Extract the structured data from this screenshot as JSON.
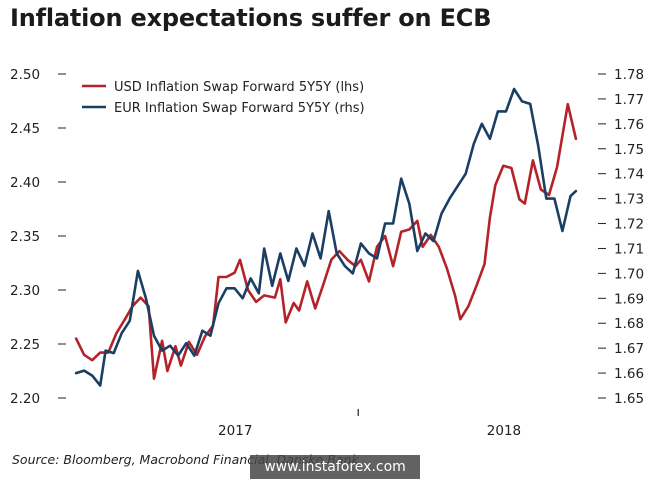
{
  "title": "Inflation expectations suffer on ECB",
  "source": "Source: Bloomberg, Macrobond Financial, Danske Bank",
  "watermark": "www.instaforex.com",
  "chart_data": {
    "type": "line",
    "title": "Inflation expectations suffer on ECB",
    "x_tick_labels": [
      "2017",
      "2018"
    ],
    "left_axis": {
      "ticks": [
        "2.20",
        "2.25",
        "2.30",
        "2.35",
        "2.40",
        "2.45",
        "2.50"
      ],
      "ylim": [
        2.2,
        2.5
      ]
    },
    "right_axis": {
      "ticks": [
        "1.65",
        "1.66",
        "1.67",
        "1.68",
        "1.69",
        "1.70",
        "1.71",
        "1.72",
        "1.73",
        "1.74",
        "1.75",
        "1.76",
        "1.77",
        "1.78"
      ],
      "ylim": [
        1.65,
        1.78
      ]
    },
    "x_range": [
      2016.4,
      2018.35
    ],
    "legend_position": "top-left",
    "series": [
      {
        "name": "USD Inflation Swap Forward 5Y5Y (lhs)",
        "axis": "left",
        "color": "#b5232a",
        "points": [
          [
            2016.43,
            2.255
          ],
          [
            2016.46,
            2.24
          ],
          [
            2016.49,
            2.235
          ],
          [
            2016.52,
            2.242
          ],
          [
            2016.55,
            2.242
          ],
          [
            2016.58,
            2.26
          ],
          [
            2016.61,
            2.272
          ],
          [
            2016.64,
            2.285
          ],
          [
            2016.67,
            2.293
          ],
          [
            2016.7,
            2.285
          ],
          [
            2016.72,
            2.218
          ],
          [
            2016.75,
            2.253
          ],
          [
            2016.77,
            2.225
          ],
          [
            2016.8,
            2.248
          ],
          [
            2016.82,
            2.23
          ],
          [
            2016.85,
            2.252
          ],
          [
            2016.88,
            2.24
          ],
          [
            2016.91,
            2.257
          ],
          [
            2016.94,
            2.267
          ],
          [
            2016.96,
            2.312
          ],
          [
            2016.99,
            2.312
          ],
          [
            2017.02,
            2.316
          ],
          [
            2017.04,
            2.328
          ],
          [
            2017.07,
            2.3
          ],
          [
            2017.1,
            2.289
          ],
          [
            2017.13,
            2.295
          ],
          [
            2017.17,
            2.293
          ],
          [
            2017.19,
            2.31
          ],
          [
            2017.21,
            2.27
          ],
          [
            2017.24,
            2.288
          ],
          [
            2017.26,
            2.281
          ],
          [
            2017.29,
            2.308
          ],
          [
            2017.32,
            2.283
          ],
          [
            2017.35,
            2.305
          ],
          [
            2017.38,
            2.328
          ],
          [
            2017.41,
            2.336
          ],
          [
            2017.44,
            2.328
          ],
          [
            2017.47,
            2.322
          ],
          [
            2017.49,
            2.328
          ],
          [
            2017.52,
            2.308
          ],
          [
            2017.55,
            2.34
          ],
          [
            2017.58,
            2.35
          ],
          [
            2017.61,
            2.322
          ],
          [
            2017.64,
            2.354
          ],
          [
            2017.67,
            2.356
          ],
          [
            2017.7,
            2.364
          ],
          [
            2017.72,
            2.34
          ],
          [
            2017.75,
            2.351
          ],
          [
            2017.78,
            2.34
          ],
          [
            2017.81,
            2.32
          ],
          [
            2017.84,
            2.295
          ],
          [
            2017.86,
            2.273
          ],
          [
            2017.89,
            2.285
          ],
          [
            2017.92,
            2.304
          ],
          [
            2017.95,
            2.324
          ],
          [
            2017.97,
            2.367
          ],
          [
            2017.99,
            2.397
          ],
          [
            2018.02,
            2.415
          ],
          [
            2018.05,
            2.413
          ],
          [
            2018.08,
            2.384
          ],
          [
            2018.1,
            2.38
          ],
          [
            2018.13,
            2.42
          ],
          [
            2018.16,
            2.393
          ],
          [
            2018.19,
            2.388
          ],
          [
            2018.22,
            2.414
          ],
          [
            2018.26,
            2.472
          ],
          [
            2018.29,
            2.44
          ]
        ]
      },
      {
        "name": "EUR Inflation Swap Forward 5Y5Y (rhs)",
        "axis": "right",
        "color": "#1b3f63",
        "points": [
          [
            2016.43,
            1.66
          ],
          [
            2016.46,
            1.661
          ],
          [
            2016.49,
            1.659
          ],
          [
            2016.52,
            1.655
          ],
          [
            2016.54,
            1.669
          ],
          [
            2016.57,
            1.668
          ],
          [
            2016.6,
            1.676
          ],
          [
            2016.63,
            1.681
          ],
          [
            2016.66,
            1.701
          ],
          [
            2016.69,
            1.69
          ],
          [
            2016.72,
            1.675
          ],
          [
            2016.75,
            1.669
          ],
          [
            2016.78,
            1.671
          ],
          [
            2016.81,
            1.667
          ],
          [
            2016.84,
            1.672
          ],
          [
            2016.87,
            1.667
          ],
          [
            2016.9,
            1.677
          ],
          [
            2016.93,
            1.675
          ],
          [
            2016.96,
            1.688
          ],
          [
            2016.99,
            1.694
          ],
          [
            2017.02,
            1.694
          ],
          [
            2017.05,
            1.69
          ],
          [
            2017.08,
            1.698
          ],
          [
            2017.11,
            1.692
          ],
          [
            2017.13,
            1.71
          ],
          [
            2017.16,
            1.695
          ],
          [
            2017.19,
            1.708
          ],
          [
            2017.22,
            1.697
          ],
          [
            2017.25,
            1.71
          ],
          [
            2017.28,
            1.703
          ],
          [
            2017.31,
            1.716
          ],
          [
            2017.34,
            1.706
          ],
          [
            2017.37,
            1.725
          ],
          [
            2017.4,
            1.708
          ],
          [
            2017.43,
            1.703
          ],
          [
            2017.46,
            1.7
          ],
          [
            2017.49,
            1.712
          ],
          [
            2017.52,
            1.708
          ],
          [
            2017.55,
            1.706
          ],
          [
            2017.58,
            1.72
          ],
          [
            2017.61,
            1.72
          ],
          [
            2017.64,
            1.738
          ],
          [
            2017.67,
            1.728
          ],
          [
            2017.7,
            1.709
          ],
          [
            2017.73,
            1.716
          ],
          [
            2017.76,
            1.713
          ],
          [
            2017.79,
            1.724
          ],
          [
            2017.82,
            1.73
          ],
          [
            2017.85,
            1.735
          ],
          [
            2017.88,
            1.74
          ],
          [
            2017.91,
            1.752
          ],
          [
            2017.94,
            1.76
          ],
          [
            2017.97,
            1.754
          ],
          [
            2018.0,
            1.765
          ],
          [
            2018.03,
            1.765
          ],
          [
            2018.06,
            1.774
          ],
          [
            2018.09,
            1.769
          ],
          [
            2018.12,
            1.768
          ],
          [
            2018.15,
            1.751
          ],
          [
            2018.18,
            1.73
          ],
          [
            2018.21,
            1.73
          ],
          [
            2018.24,
            1.717
          ],
          [
            2018.27,
            1.731
          ],
          [
            2018.29,
            1.733
          ]
        ]
      }
    ]
  }
}
